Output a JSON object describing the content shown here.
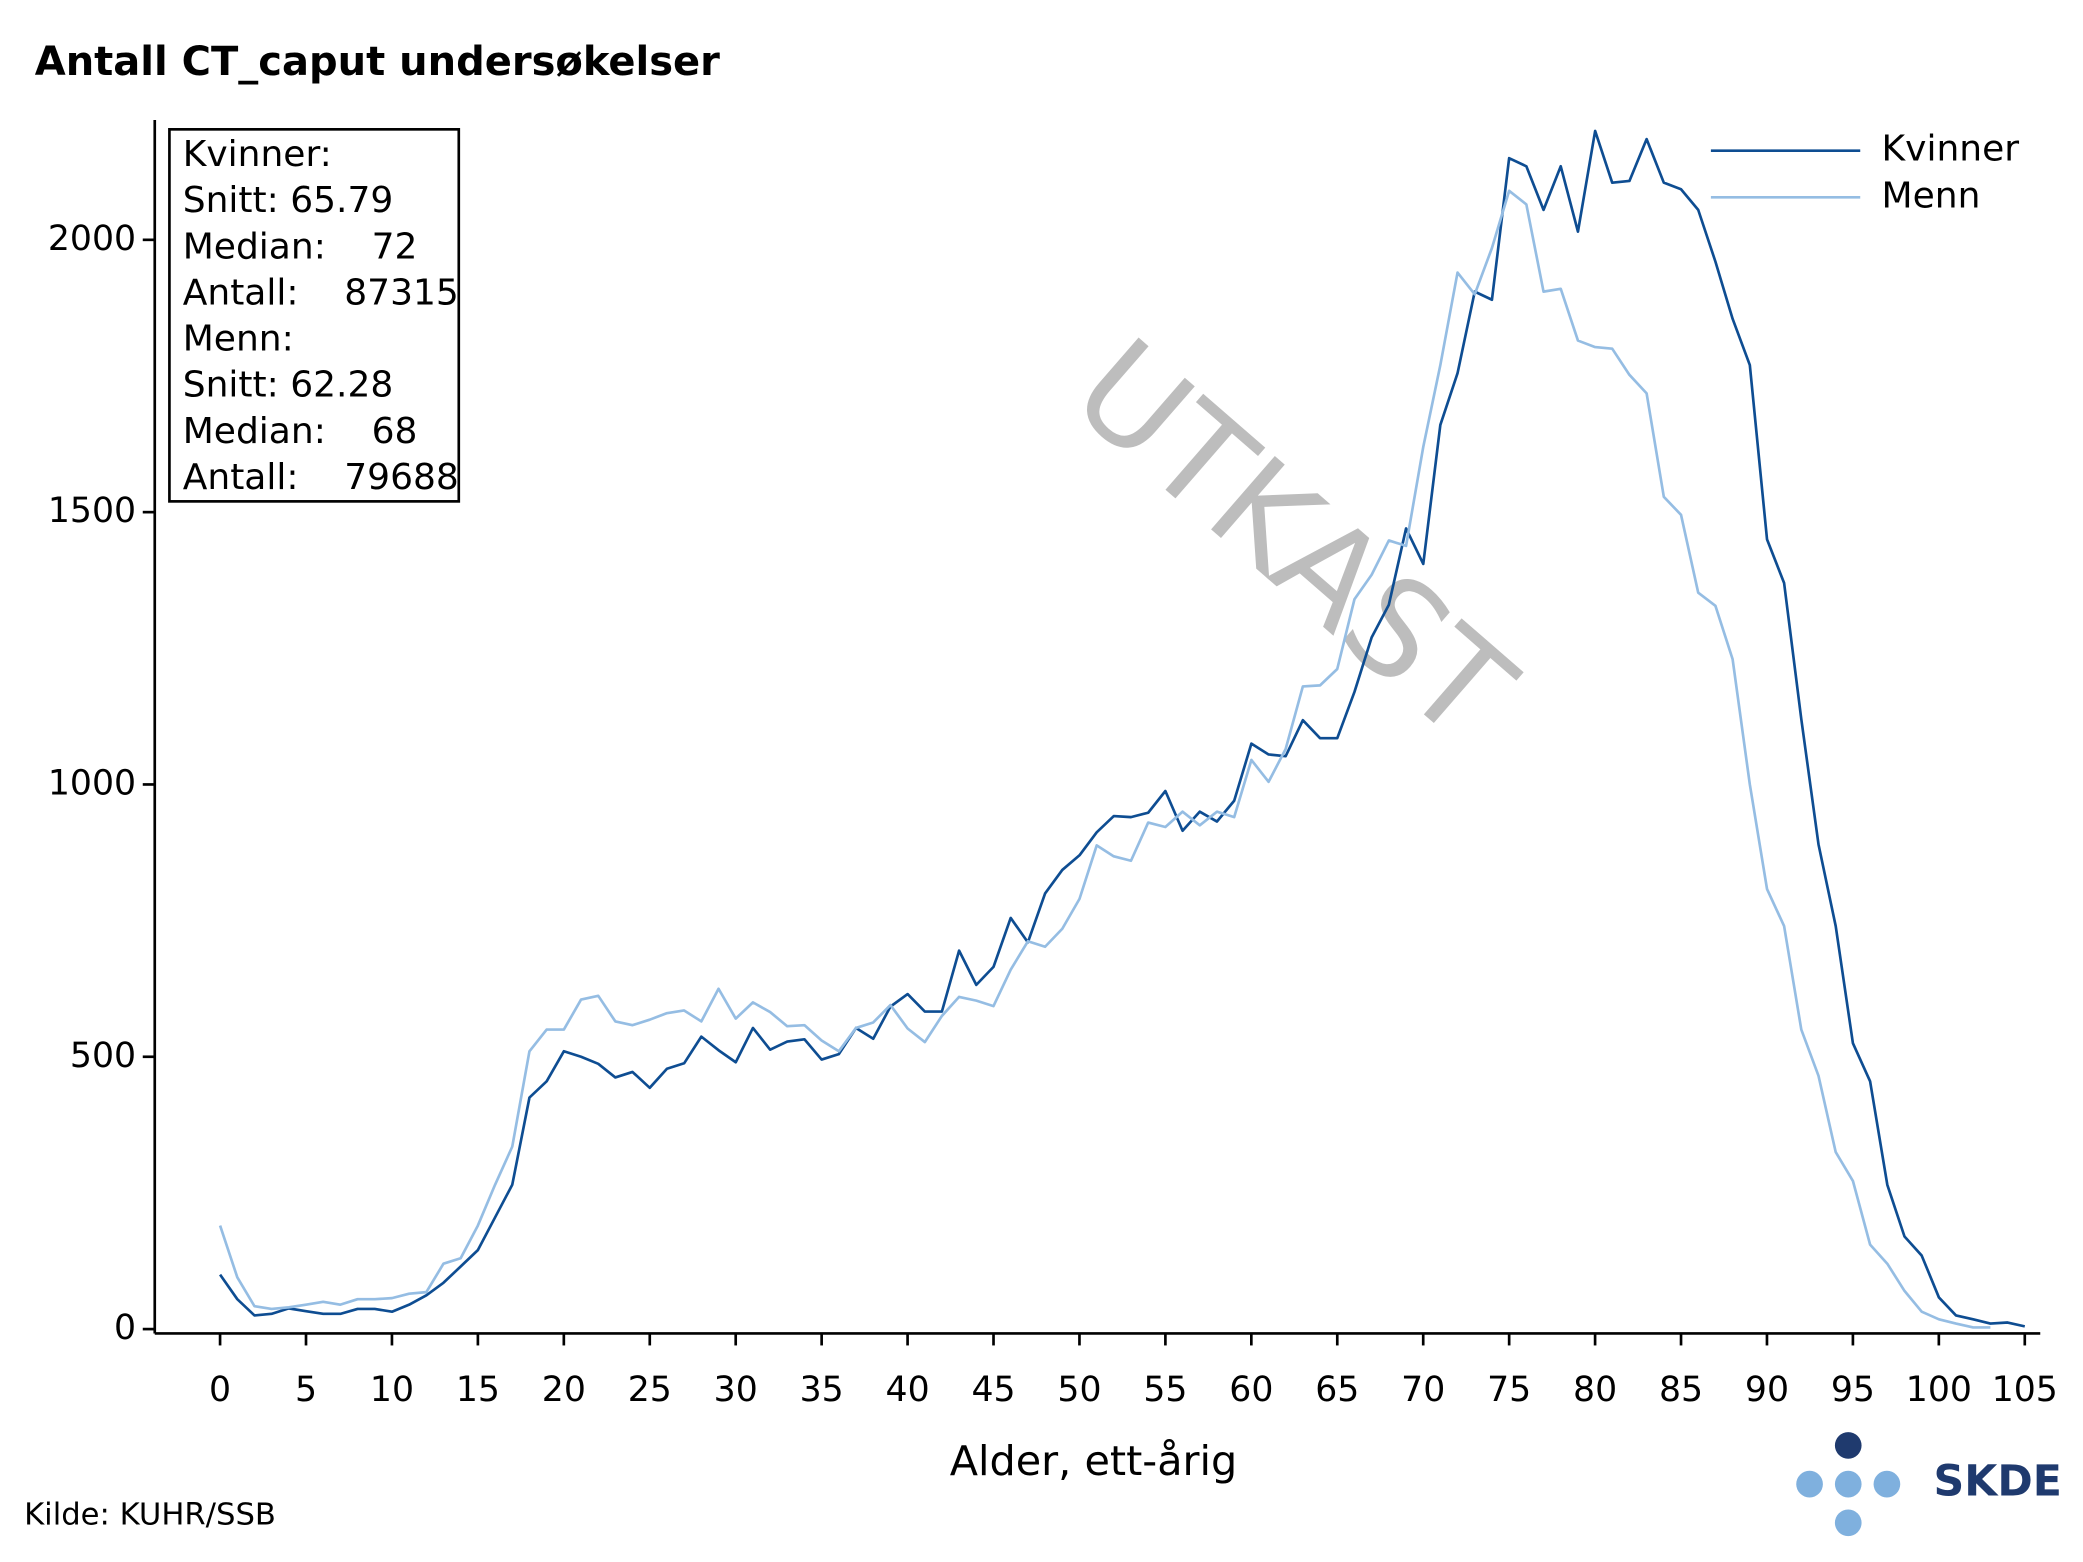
{
  "chart_data": {
    "type": "line",
    "title": "Antall CT_caput undersøkelser",
    "x_label": "Alder, ett-årig",
    "source": "Kilde: KUHR/SSB",
    "watermark": "UTKAST",
    "logo": "SKDE",
    "stats_box": [
      "Kvinner:",
      "Snitt: 65.79",
      "Median:    72",
      "Antall:    87315",
      "Menn:",
      "Snitt: 62.28",
      "Median:    68",
      "Antall:    79688"
    ],
    "legend": "top-right",
    "x": [
      0,
      1,
      2,
      3,
      4,
      5,
      6,
      7,
      8,
      9,
      10,
      11,
      12,
      13,
      14,
      15,
      16,
      17,
      18,
      19,
      20,
      21,
      22,
      23,
      24,
      25,
      26,
      27,
      28,
      29,
      30,
      31,
      32,
      33,
      34,
      35,
      36,
      37,
      38,
      39,
      40,
      41,
      42,
      43,
      44,
      45,
      46,
      47,
      48,
      49,
      50,
      51,
      52,
      53,
      54,
      55,
      56,
      57,
      58,
      59,
      60,
      61,
      62,
      63,
      64,
      65,
      66,
      67,
      68,
      69,
      70,
      71,
      72,
      73,
      74,
      75,
      76,
      77,
      78,
      79,
      80,
      81,
      82,
      83,
      84,
      85,
      86,
      87,
      88,
      89,
      90,
      91,
      92,
      93,
      94,
      95,
      96,
      97,
      98,
      99,
      100,
      101,
      102,
      103,
      104,
      105
    ],
    "series": [
      {
        "name": "Kvinner",
        "color": "#0e4d92",
        "values": [
          100,
          55,
          25,
          28,
          38,
          33,
          28,
          28,
          37,
          37,
          32,
          45,
          62,
          85,
          115,
          145,
          205,
          265,
          425,
          455,
          510,
          500,
          487,
          462,
          472,
          443,
          478,
          488,
          537,
          512,
          490,
          553,
          513,
          528,
          532,
          495,
          505,
          553,
          533,
          592,
          615,
          583,
          583,
          695,
          632,
          665,
          755,
          710,
          800,
          843,
          870,
          912,
          942,
          940,
          948,
          988,
          915,
          950,
          932,
          970,
          1075,
          1055,
          1052,
          1118,
          1085,
          1085,
          1170,
          1270,
          1330,
          1470,
          1405,
          1660,
          1755,
          1905,
          1890,
          2150,
          2135,
          2055,
          2135,
          2015,
          2200,
          2105,
          2108,
          2185,
          2105,
          2093,
          2055,
          1960,
          1855,
          1770,
          1450,
          1370,
          1120,
          890,
          740,
          525,
          455,
          265,
          170,
          135,
          58,
          25,
          18,
          10,
          12,
          5
        ]
      },
      {
        "name": "Menn",
        "color": "#95bde3",
        "values": [
          190,
          95,
          42,
          37,
          40,
          45,
          50,
          45,
          55,
          55,
          57,
          65,
          68,
          120,
          130,
          190,
          265,
          335,
          510,
          550,
          550,
          605,
          612,
          565,
          558,
          568,
          580,
          585,
          565,
          625,
          570,
          600,
          582,
          556,
          558,
          530,
          510,
          553,
          563,
          595,
          552,
          527,
          575,
          610,
          603,
          593,
          660,
          712,
          702,
          735,
          790,
          888,
          868,
          860,
          930,
          922,
          950,
          925,
          950,
          940,
          1045,
          1005,
          1065,
          1180,
          1182,
          1212,
          1340,
          1385,
          1448,
          1438,
          1620,
          1770,
          1940,
          1900,
          1985,
          2090,
          2065,
          1905,
          1910,
          1815,
          1803,
          1800,
          1752,
          1718,
          1528,
          1495,
          1352,
          1328,
          1230,
          1000,
          808,
          740,
          550,
          465,
          325,
          272,
          155,
          120,
          70,
          32,
          18,
          10,
          3,
          3,
          null,
          null
        ]
      }
    ],
    "xlim": [
      -3.8,
      105.9
    ],
    "ylim": [
      -8,
      2220
    ],
    "xticks": [
      0,
      5,
      10,
      15,
      20,
      25,
      30,
      35,
      40,
      45,
      50,
      55,
      60,
      65,
      70,
      75,
      80,
      85,
      90,
      95,
      100,
      105
    ],
    "yticks": [
      0,
      500,
      1000,
      1500,
      2000
    ]
  }
}
